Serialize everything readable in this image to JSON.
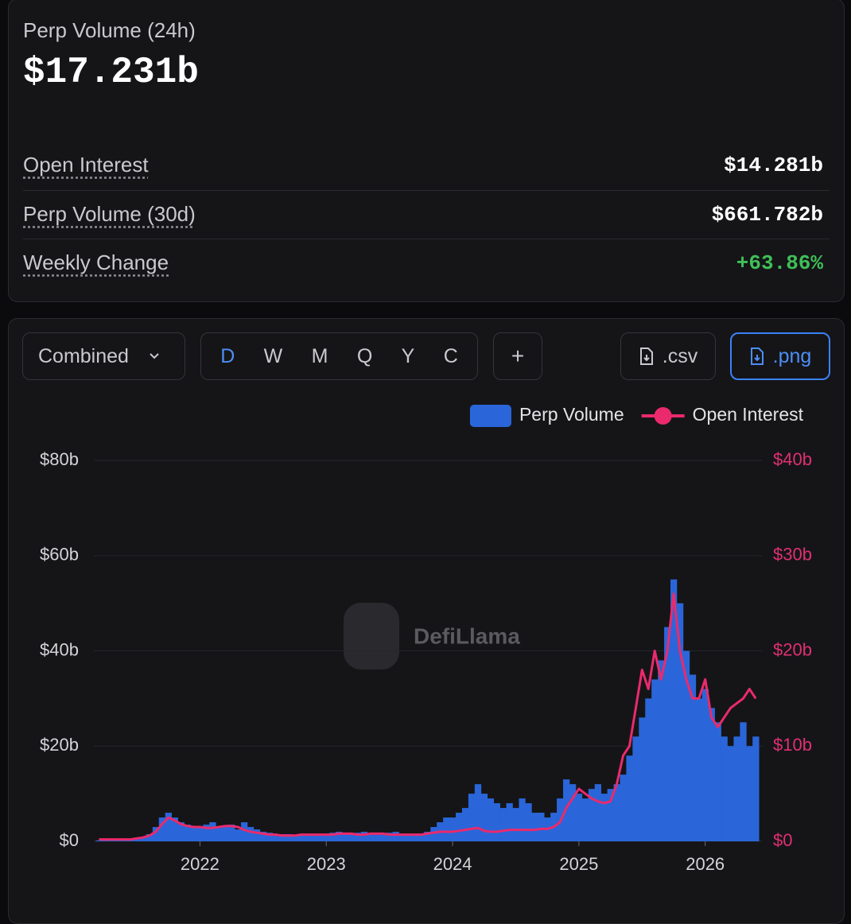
{
  "stats": {
    "title": "Perp Volume (24h)",
    "value": "$17.231b",
    "rows": [
      {
        "label": "Open Interest",
        "value": "$14.281b"
      },
      {
        "label": "Perp Volume (30d)",
        "value": "$661.782b"
      },
      {
        "label": "Weekly Change",
        "value": "+63.86%"
      }
    ]
  },
  "controls": {
    "dropdown": "Combined",
    "intervals": [
      "D",
      "W",
      "M",
      "Q",
      "Y",
      "C"
    ],
    "add": "+",
    "downloads": [
      ".csv",
      ".png"
    ]
  },
  "watermark": "DefiLlama",
  "chart_data": {
    "type": "combo",
    "legend": "top-right",
    "x": [
      2021.2,
      2021.25,
      2021.3,
      2021.35,
      2021.4,
      2021.45,
      2021.5,
      2021.55,
      2021.6,
      2021.65,
      2021.7,
      2021.75,
      2021.8,
      2021.85,
      2021.9,
      2021.95,
      2022,
      2022.05,
      2022.1,
      2022.15,
      2022.2,
      2022.25,
      2022.3,
      2022.35,
      2022.4,
      2022.45,
      2022.5,
      2022.55,
      2022.6,
      2022.65,
      2022.7,
      2022.75,
      2022.8,
      2022.85,
      2022.9,
      2022.95,
      2023,
      2023.05,
      2023.1,
      2023.15,
      2023.2,
      2023.25,
      2023.3,
      2023.35,
      2023.4,
      2023.45,
      2023.5,
      2023.55,
      2023.6,
      2023.65,
      2023.7,
      2023.75,
      2023.8,
      2023.85,
      2023.9,
      2023.95,
      2024,
      2024.05,
      2024.1,
      2024.15,
      2024.2,
      2024.25,
      2024.3,
      2024.35,
      2024.4,
      2024.45,
      2024.5,
      2024.55,
      2024.6,
      2024.65,
      2024.7,
      2024.75,
      2024.8,
      2024.85,
      2024.9,
      2024.95,
      2025,
      2025.05,
      2025.1,
      2025.15,
      2025.2,
      2025.25,
      2025.3,
      2025.35,
      2025.4,
      2025.45,
      2025.5,
      2025.55,
      2025.6,
      2025.65,
      2025.7,
      2025.75,
      2025.8,
      2025.85,
      2025.9,
      2025.95,
      2026,
      2026.05,
      2026.1,
      2026.15,
      2026.2,
      2026.25,
      2026.3,
      2026.35,
      2026.4
    ],
    "series": [
      {
        "name": "Perp Volume",
        "type": "bar",
        "axis": "y",
        "color": "#2a66d9",
        "values": [
          0.2,
          0.2,
          0.2,
          0.2,
          0.2,
          0.3,
          0.5,
          0.8,
          1.5,
          3,
          5,
          6,
          5,
          4,
          3.5,
          3,
          3,
          3.5,
          4,
          3,
          3,
          3.5,
          2.5,
          4,
          3,
          2.5,
          2,
          1.8,
          1.5,
          1.5,
          1.5,
          1.2,
          1.3,
          1.5,
          1.5,
          1.5,
          1.5,
          1.8,
          2,
          1.5,
          1.5,
          1.8,
          2,
          1.5,
          1.4,
          1.5,
          1.8,
          2,
          1.5,
          1.4,
          1.3,
          1.5,
          2,
          3,
          4,
          5,
          5,
          6,
          7,
          10,
          12,
          10,
          9,
          8,
          7,
          8,
          7,
          9,
          8,
          6,
          6,
          5,
          6,
          9,
          13,
          12,
          10,
          9,
          11,
          12,
          10,
          11,
          12,
          14,
          18,
          22,
          26,
          30,
          34,
          38,
          45,
          55,
          50,
          40,
          35,
          30,
          32,
          28,
          25,
          22,
          20,
          22,
          25,
          20,
          22
        ]
      },
      {
        "name": "Open Interest",
        "type": "line",
        "axis": "y2",
        "color": "#ea2a6c",
        "values": [
          0.2,
          0.2,
          0.2,
          0.2,
          0.2,
          0.2,
          0.3,
          0.4,
          0.6,
          1,
          1.8,
          2.5,
          2.2,
          1.8,
          1.6,
          1.5,
          1.5,
          1.4,
          1.4,
          1.5,
          1.6,
          1.6,
          1.5,
          1.2,
          1,
          0.9,
          0.8,
          0.7,
          0.7,
          0.6,
          0.6,
          0.6,
          0.7,
          0.7,
          0.7,
          0.7,
          0.7,
          0.7,
          0.8,
          0.8,
          0.8,
          0.7,
          0.7,
          0.8,
          0.8,
          0.8,
          0.7,
          0.7,
          0.7,
          0.7,
          0.7,
          0.7,
          0.8,
          0.9,
          1,
          1,
          1,
          1.1,
          1.2,
          1.3,
          1.4,
          1.1,
          1,
          1,
          1.1,
          1.2,
          1.2,
          1.2,
          1.2,
          1.2,
          1.3,
          1.3,
          1.5,
          2,
          3.5,
          4.5,
          5.5,
          5,
          4.5,
          4.2,
          4,
          4.2,
          6,
          9,
          10,
          14,
          18,
          16,
          20,
          17,
          20,
          26,
          20,
          17,
          15,
          15,
          17,
          13,
          12,
          13,
          14,
          14.5,
          15,
          16,
          15
        ]
      }
    ],
    "xlim": [
      2021.16,
      2026.43
    ],
    "xticks": [
      2022,
      2023,
      2024,
      2025,
      2026
    ],
    "ylim": [
      0,
      80
    ],
    "yticks": [
      {
        "value": 0,
        "label": "$0"
      },
      {
        "value": 20,
        "label": "$20b"
      },
      {
        "value": 40,
        "label": "$40b"
      },
      {
        "value": 60,
        "label": "$60b"
      },
      {
        "value": 80,
        "label": "$80b"
      }
    ],
    "y2lim": [
      0,
      40
    ],
    "y2ticks": [
      {
        "value": 0,
        "label": "$0"
      },
      {
        "value": 10,
        "label": "$10b"
      },
      {
        "value": 20,
        "label": "$20b"
      },
      {
        "value": 30,
        "label": "$30b"
      },
      {
        "value": 40,
        "label": "$40b"
      }
    ],
    "grid": true
  }
}
